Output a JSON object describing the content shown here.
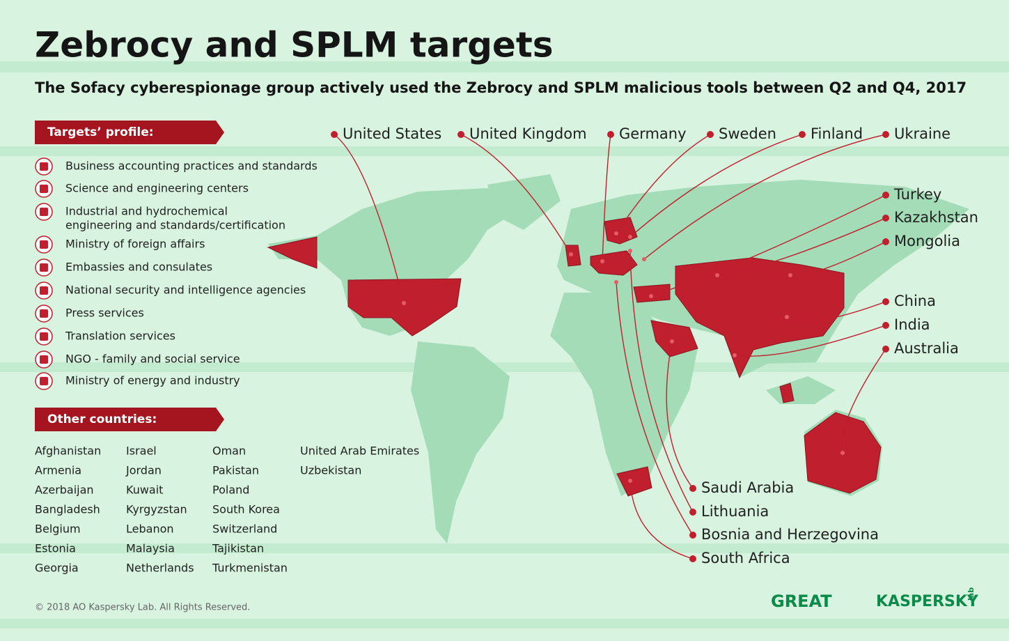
{
  "header": {
    "title": "Zebrocy and SPLM targets",
    "subtitle": "The Sofacy cyberespionage group actively used the Zebrocy and SPLM malicious tools between Q2 and Q4, 2017"
  },
  "targets_profile": {
    "heading": "Targets’ profile:",
    "items": [
      "Business accounting practices and standards",
      "Science and engineering centers",
      "Industrial and hydrochemical",
      "engineering and standards/certification",
      "Ministry of foreign affairs",
      "Embassies and consulates",
      "National security and intelligence agencies",
      "Press services",
      "Translation services",
      "NGO - family and social service",
      "Ministry of energy and industry"
    ]
  },
  "other_countries": {
    "heading": "Other countries:",
    "columns": [
      [
        "Afghanistan",
        "Armenia",
        "Azerbaijan",
        "Bangladesh",
        "Belgium",
        "Estonia",
        "Georgia"
      ],
      [
        "Israel",
        "Jordan",
        "Kuwait",
        "Kyrgyzstan",
        "Lebanon",
        "Malaysia",
        "Netherlands"
      ],
      [
        "Oman",
        "Pakistan",
        "Poland",
        "South Korea",
        "Switzerland",
        "Tajikistan",
        "Turkmenistan"
      ],
      [
        "United Arab Emirates",
        "Uzbekistan"
      ]
    ]
  },
  "map_labels": [
    "United States",
    "United Kingdom",
    "Germany",
    "Sweden",
    "Finland",
    "Ukraine",
    "Turkey",
    "Kazakhstan",
    "Mongolia",
    "China",
    "India",
    "Australia",
    "Saudi Arabia",
    "Lithuania",
    "Bosnia and Herzegovina",
    "South Africa"
  ],
  "footer": {
    "copyright": "© 2018 AO Kaspersky Lab. All Rights Reserved.",
    "logo_great": "GREAT",
    "logo_kaspersky": "KASPERSKY",
    "logo_lab": "lab"
  }
}
